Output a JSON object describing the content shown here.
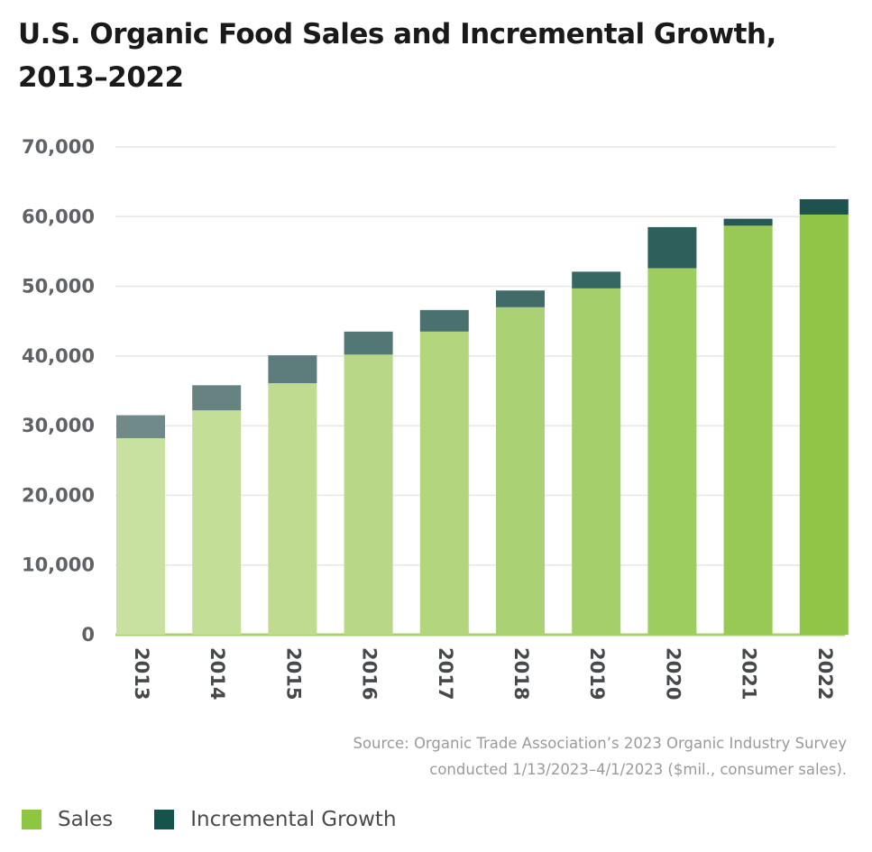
{
  "chart_data": {
    "type": "bar",
    "stacked": true,
    "title_lines": [
      "U.S. Organic Food Sales and Incremental Growth,",
      "2013–2022"
    ],
    "categories": [
      "2013",
      "2014",
      "2015",
      "2016",
      "2017",
      "2018",
      "2019",
      "2020",
      "2021",
      "2022"
    ],
    "series": [
      {
        "name": "Sales",
        "values": [
          28200,
          32200,
          36100,
          40200,
          43500,
          47000,
          49700,
          52600,
          58700,
          60300
        ]
      },
      {
        "name": "Incremental Growth",
        "values": [
          3300,
          3600,
          4000,
          3300,
          3100,
          2400,
          2400,
          5900,
          1000,
          2200
        ]
      }
    ],
    "y_ticks": [
      "70,000",
      "60,000",
      "50,000",
      "40,000",
      "30,000",
      "20,000",
      "10,000",
      "0"
    ],
    "ylim": [
      0,
      70000
    ],
    "grid": true,
    "colors": {
      "sales_gradient": [
        "#c8e1a0",
        "#c2de97",
        "#bedb90",
        "#b8d887",
        "#b2d57e",
        "#aad274",
        "#a4cf6b",
        "#9dcc5f",
        "#97c954",
        "#90c547"
      ],
      "growth_gradient": [
        "#6f8a88",
        "#668382",
        "#5c7d7b",
        "#527775",
        "#4a716f",
        "#416b68",
        "#386662",
        "#2e5f5b",
        "#265956",
        "#1d524e"
      ],
      "grid": "#e6e6e6",
      "legend_sales": "#8dc641",
      "legend_growth": "#17534d"
    },
    "source_lines": [
      "Source: Organic Trade Association’s 2023 Organic Industry Survey",
      "conducted 1/13/2023–4/1/2023 ($mil., consumer sales)."
    ],
    "legend": [
      {
        "label": "Sales",
        "color": "#8dc641"
      },
      {
        "label": "Incremental Growth",
        "color": "#17534d"
      }
    ]
  }
}
